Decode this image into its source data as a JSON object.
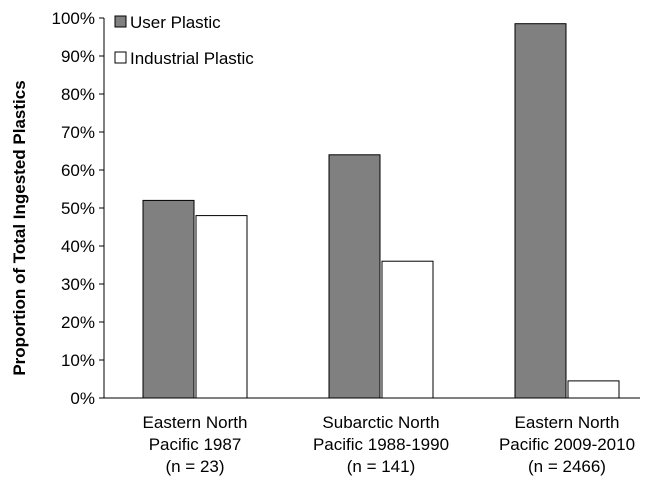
{
  "chart_data": {
    "type": "bar",
    "title": "",
    "xlabel": "",
    "ylabel": "Proportion of Total Ingested Plastics",
    "ylim": [
      0,
      100
    ],
    "y_ticks": [
      "0%",
      "10%",
      "20%",
      "30%",
      "40%",
      "50%",
      "60%",
      "70%",
      "80%",
      "90%",
      "100%"
    ],
    "categories": [
      [
        "Eastern North",
        "Pacific 1987",
        "(n = 23)"
      ],
      [
        "Subarctic North",
        "Pacific 1988-1990",
        "(n = 141)"
      ],
      [
        "Eastern North",
        "Pacific 2009-2010",
        "(n = 2466)"
      ]
    ],
    "series": [
      {
        "name": "User Plastic",
        "values": [
          52,
          64,
          98.5
        ],
        "color": "#808080"
      },
      {
        "name": "Industrial Plastic",
        "values": [
          48,
          36,
          4.5
        ],
        "color": "#ffffff"
      }
    ],
    "legend": "top-left",
    "grid": false
  }
}
